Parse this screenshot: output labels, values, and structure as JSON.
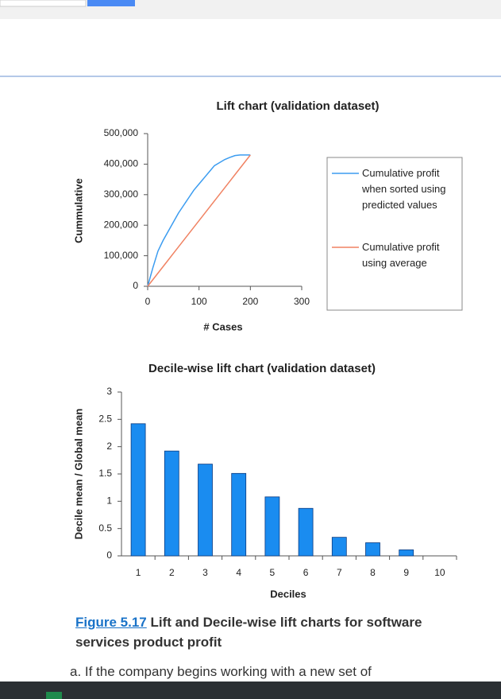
{
  "chart_data": [
    {
      "type": "line",
      "title": "Lift chart (validation dataset)",
      "x_label": "# Cases",
      "y_label": "Cummulative",
      "x": [
        0,
        10,
        20,
        30,
        40,
        50,
        60,
        70,
        80,
        90,
        100,
        110,
        120,
        130,
        140,
        150,
        160,
        170,
        180,
        190,
        200
      ],
      "series": [
        {
          "name": "Cumulative profit when sorted using predicted values",
          "color": "#3b9cf0",
          "values": [
            0,
            60000,
            115000,
            150000,
            180000,
            210000,
            240000,
            265000,
            290000,
            315000,
            335000,
            355000,
            375000,
            395000,
            405000,
            415000,
            422000,
            428000,
            430000,
            430000,
            430000
          ]
        },
        {
          "name": "Cumulative profit using average",
          "color": "#f08262",
          "values": [
            0,
            21500,
            43000,
            64500,
            86000,
            107500,
            129000,
            150500,
            172000,
            193500,
            215000,
            236500,
            258000,
            279500,
            301000,
            322500,
            344000,
            365500,
            387000,
            408500,
            430000
          ]
        }
      ],
      "xlim": [
        0,
        300
      ],
      "xticks": [
        0,
        100,
        200,
        300
      ],
      "ylim": [
        0,
        500000
      ],
      "yticks": [
        0,
        {
          "value": 100000,
          "label": "100,000"
        },
        {
          "value": 200000,
          "label": "200,000"
        },
        {
          "value": 300000,
          "label": "300,000"
        },
        {
          "value": 400000,
          "label": "400,000"
        },
        {
          "value": 500000,
          "label": "500,000"
        }
      ],
      "legend": "right"
    },
    {
      "type": "bar",
      "title": "Decile-wise lift chart (validation dataset)",
      "x_label": "Deciles",
      "y_label": "Decile mean / Global mean",
      "categories": [
        "1",
        "2",
        "3",
        "4",
        "5",
        "6",
        "7",
        "8",
        "9",
        "10"
      ],
      "values": [
        2.42,
        1.92,
        1.68,
        1.51,
        1.08,
        0.87,
        0.34,
        0.24,
        0.11,
        0
      ],
      "color": "#1a8cf0",
      "ylim": [
        0,
        3
      ],
      "yticks": [
        0,
        0.5,
        1,
        1.5,
        2,
        2.5,
        3
      ]
    }
  ],
  "caption": {
    "label": "Figure 5.17",
    "text": "Lift and Decile-wise lift charts for software services product profit"
  },
  "body_text": "a.  If the company begins working with a new set of"
}
